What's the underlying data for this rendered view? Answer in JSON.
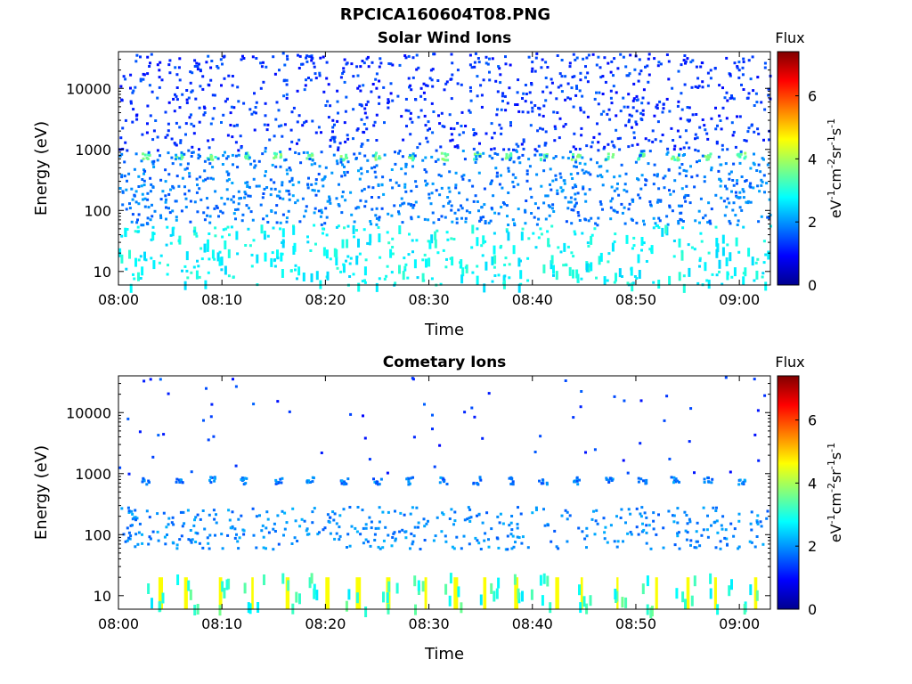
{
  "figure": {
    "title": "RPCICA160604T08.PNG"
  },
  "chart_data": [
    {
      "type": "heatmap",
      "title": "Solar Wind Ions",
      "xlabel": "Time",
      "ylabel": "Energy (eV)",
      "x_ticks": [
        "08:00",
        "08:10",
        "08:20",
        "08:30",
        "08:40",
        "08:50",
        "09:00"
      ],
      "x_range": [
        "08:00",
        "09:03"
      ],
      "y_scale": "log",
      "y_ticks": [
        10,
        100,
        1000,
        10000
      ],
      "ylim": [
        6,
        40000
      ],
      "colorbar": {
        "label": "Flux",
        "unit": "eV-1cm-2sr-1s-1",
        "ticks": [
          0,
          2,
          4,
          6
        ],
        "range": [
          0,
          7.4
        ]
      },
      "features": [
        {
          "energy_eV": 800,
          "period_min": 3.2,
          "start": "08:02:30",
          "flux": 3.5
        },
        {
          "energy_range_eV": [
            1000,
            40000
          ],
          "flux": 1.3,
          "density": "dense"
        },
        {
          "energy_range_eV": [
            60,
            1000
          ],
          "flux": 1.8,
          "density": "dense"
        },
        {
          "energy_range_eV": [
            6,
            60
          ],
          "flux": 2.8,
          "density": "moderate"
        }
      ]
    },
    {
      "type": "heatmap",
      "title": "Cometary Ions",
      "xlabel": "Time",
      "ylabel": "Energy (eV)",
      "x_ticks": [
        "08:00",
        "08:10",
        "08:20",
        "08:30",
        "08:40",
        "08:50",
        "09:00"
      ],
      "x_range": [
        "08:00",
        "09:03"
      ],
      "y_scale": "log",
      "y_ticks": [
        10,
        100,
        1000,
        10000
      ],
      "ylim": [
        6,
        40000
      ],
      "colorbar": {
        "label": "Flux",
        "unit": "eV-1cm-2sr-1s-1",
        "ticks": [
          0,
          2,
          4,
          6
        ],
        "range": [
          0,
          7.4
        ]
      },
      "features": [
        {
          "energy_eV": 800,
          "period_min": 3.2,
          "start": "08:02:30",
          "flux": 1.8
        },
        {
          "energy_range_eV": [
            1000,
            40000
          ],
          "flux": 1.3,
          "density": "sparse"
        },
        {
          "energy_range_eV": [
            60,
            300
          ],
          "flux": 1.9,
          "density": "moderate"
        },
        {
          "energy_range_eV": [
            6,
            20
          ],
          "flux": 4.6,
          "period_min": 3.2,
          "start": "08:03:30",
          "density": "bursts"
        }
      ]
    }
  ]
}
